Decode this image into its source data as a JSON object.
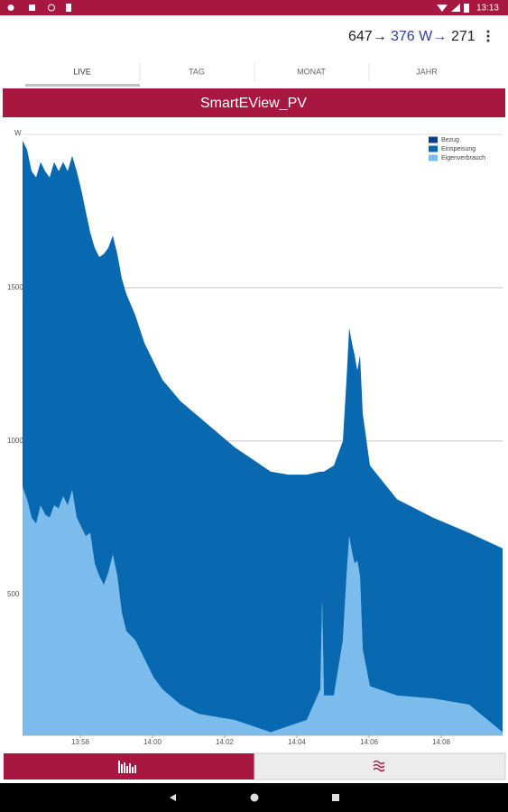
{
  "status_bar": {
    "time": "13:13"
  },
  "header": {
    "flow": [
      "647→",
      "376 W→",
      "271"
    ]
  },
  "tabs": [
    "LIVE",
    "TAG",
    "MONAT",
    "JAHR"
  ],
  "chart_data": {
    "type": "stacked-area",
    "title": "SmartEView_PV",
    "y_unit_label": "W",
    "x": [
      836.4,
      836.525,
      836.65,
      836.775,
      836.9,
      837.025,
      837.15,
      837.275,
      837.4,
      837.525,
      837.65,
      837.775,
      837.9,
      838.025,
      838.15,
      838.275,
      838.4,
      838.525,
      838.65,
      838.775,
      838.9,
      839.025,
      839.15,
      839.275,
      839.525,
      839.775,
      840.025,
      840.275,
      840.775,
      841.275,
      841.775,
      842.275,
      842.775,
      843.275,
      843.775,
      844.275,
      844.65,
      844.7,
      844.75,
      845.025,
      845.275,
      845.375,
      845.45,
      845.525,
      845.6,
      845.675,
      845.75,
      845.825,
      846.025,
      846.775,
      847.775,
      848.775,
      849.7
    ],
    "series": [
      {
        "name": "Bezug",
        "color": "#0b3d8c",
        "values": [
          0,
          0,
          0,
          0,
          0,
          0,
          0,
          0,
          0,
          0,
          0,
          0,
          0,
          0,
          0,
          0,
          0,
          0,
          0,
          0,
          0,
          0,
          0,
          0,
          0,
          0,
          0,
          0,
          0,
          0,
          0,
          0,
          0,
          0,
          0,
          0,
          0,
          0,
          0,
          0,
          0,
          0,
          0,
          0,
          0,
          0,
          0,
          0,
          0,
          0,
          0,
          0,
          0
        ]
      },
      {
        "name": "Einspeisung",
        "color": "#0868b0",
        "values": [
          1130,
          1140,
          1130,
          1130,
          1120,
          1120,
          1110,
          1120,
          1100,
          1090,
          1090,
          1090,
          1130,
          1100,
          1060,
          980,
          1030,
          1040,
          1080,
          1060,
          1040,
          1050,
          1090,
          1100,
          1060,
          1030,
          1030,
          1010,
          990,
          970,
          930,
          890,
          870,
          850,
          820,
          800,
          710,
          420,
          730,
          750,
          650,
          640,
          680,
          680,
          680,
          620,
          720,
          770,
          720,
          640,
          590,
          560,
          600
        ]
      },
      {
        "name": "Eigenverbrauch",
        "color": "#7cbcec",
        "values": [
          850,
          810,
          750,
          730,
          790,
          760,
          750,
          790,
          780,
          820,
          790,
          840,
          750,
          720,
          690,
          700,
          600,
          560,
          530,
          570,
          630,
          560,
          440,
          380,
          350,
          290,
          230,
          190,
          140,
          110,
          100,
          90,
          70,
          50,
          70,
          90,
          190,
          480,
          170,
          170,
          350,
          560,
          690,
          640,
          600,
          610,
          560,
          320,
          200,
          170,
          160,
          140,
          50
        ]
      }
    ],
    "xlim": [
      836.4,
      849.7
    ],
    "xticks": [
      {
        "value": 838,
        "label": "13:58"
      },
      {
        "value": 840,
        "label": "14:00"
      },
      {
        "value": 842,
        "label": "14:02"
      },
      {
        "value": 844,
        "label": "14:04"
      },
      {
        "value": 846,
        "label": "14:06"
      },
      {
        "value": 848,
        "label": "14:08"
      }
    ],
    "ylim": [
      40,
      2000
    ],
    "yticks": [
      500,
      1000,
      1500
    ],
    "grid": true,
    "legend": "top-right"
  }
}
